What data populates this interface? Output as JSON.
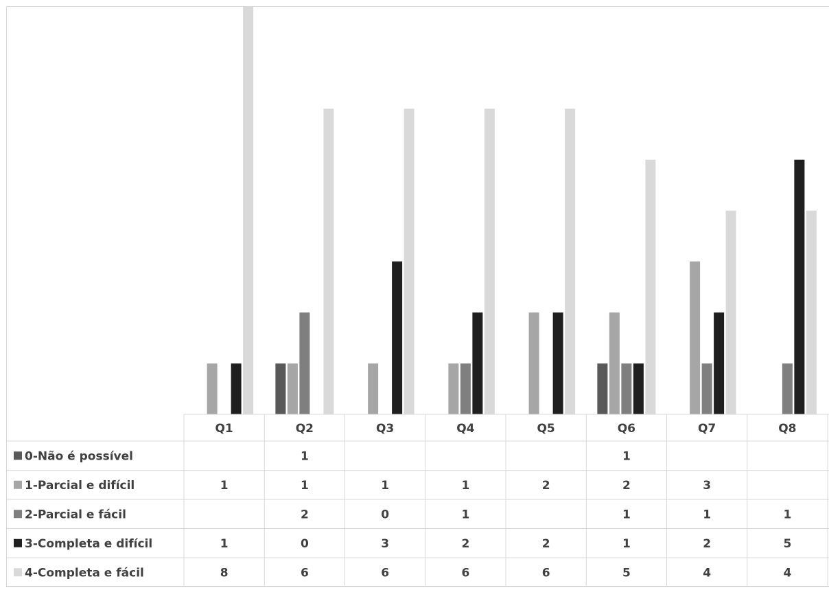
{
  "chart_data": {
    "type": "bar",
    "categories": [
      "Q1",
      "Q2",
      "Q3",
      "Q4",
      "Q5",
      "Q6",
      "Q7",
      "Q8"
    ],
    "ylim": [
      0,
      8
    ],
    "grid": false,
    "legend": "data-table",
    "series": [
      {
        "name": "0-Não é possível",
        "color": "#595959",
        "values": [
          null,
          1,
          null,
          null,
          null,
          1,
          null,
          null
        ],
        "labels": [
          "",
          "1",
          "",
          "",
          "",
          "1",
          "",
          ""
        ]
      },
      {
        "name": "1-Parcial e difícil",
        "color": "#a6a6a6",
        "values": [
          1,
          1,
          1,
          1,
          2,
          2,
          3,
          null
        ],
        "labels": [
          "1",
          "1",
          "1",
          "1",
          "2",
          "2",
          "3",
          ""
        ]
      },
      {
        "name": "2-Parcial e fácil",
        "color": "#7f7f7f",
        "values": [
          null,
          2,
          0,
          1,
          null,
          1,
          1,
          1
        ],
        "labels": [
          "",
          "2",
          "0",
          "1",
          "",
          "1",
          "1",
          "1"
        ]
      },
      {
        "name": "3-Completa e difícil",
        "color": "#1f1f1f",
        "values": [
          1,
          0,
          3,
          2,
          2,
          1,
          2,
          5
        ],
        "labels": [
          "1",
          "0",
          "3",
          "2",
          "2",
          "1",
          "2",
          "5"
        ]
      },
      {
        "name": "4-Completa e fácil",
        "color": "#d9d9d9",
        "values": [
          8,
          6,
          6,
          6,
          6,
          5,
          4,
          4
        ],
        "labels": [
          "8",
          "6",
          "6",
          "6",
          "6",
          "5",
          "4",
          "4"
        ]
      }
    ]
  }
}
